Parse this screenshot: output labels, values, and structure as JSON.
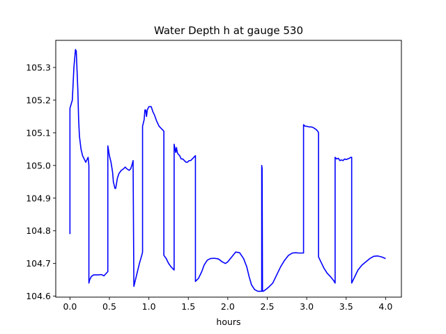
{
  "chart_data": {
    "type": "line",
    "title": "Water Depth h at gauge 530",
    "xlabel": "hours",
    "ylabel": "",
    "xlim": [
      -0.18,
      4.2
    ],
    "ylim": [
      104.597,
      105.383
    ],
    "xticks": [
      0.0,
      0.5,
      1.0,
      1.5,
      2.0,
      2.5,
      3.0,
      3.5,
      4.0
    ],
    "xtick_labels": [
      "0.0",
      "0.5",
      "1.0",
      "1.5",
      "2.0",
      "2.5",
      "3.0",
      "3.5",
      "4.0"
    ],
    "yticks": [
      104.6,
      104.7,
      104.8,
      104.9,
      105.0,
      105.1,
      105.2,
      105.3
    ],
    "ytick_labels": [
      "104.6",
      "104.7",
      "104.8",
      "104.9",
      "105.0",
      "105.1",
      "105.2",
      "105.3"
    ],
    "grid": false,
    "series": [
      {
        "color": "#0000ff",
        "x": [
          0.0,
          0.0,
          0.03,
          0.05,
          0.07,
          0.08,
          0.09,
          0.1,
          0.11,
          0.12,
          0.14,
          0.16,
          0.18,
          0.2,
          0.22,
          0.23,
          0.24,
          0.24,
          0.25,
          0.27,
          0.3,
          0.35,
          0.4,
          0.43,
          0.46,
          0.48,
          0.48,
          0.5,
          0.52,
          0.54,
          0.55,
          0.57,
          0.58,
          0.6,
          0.62,
          0.65,
          0.68,
          0.7,
          0.72,
          0.75,
          0.77,
          0.79,
          0.8,
          0.81,
          0.82,
          0.85,
          0.88,
          0.91,
          0.92,
          0.92,
          0.94,
          0.95,
          0.96,
          0.97,
          0.98,
          1.0,
          1.03,
          1.05,
          1.07,
          1.1,
          1.13,
          1.15,
          1.17,
          1.19,
          1.19,
          1.22,
          1.25,
          1.28,
          1.3,
          1.32,
          1.32,
          1.34,
          1.35,
          1.36,
          1.37,
          1.39,
          1.41,
          1.43,
          1.45,
          1.47,
          1.49,
          1.51,
          1.53,
          1.55,
          1.57,
          1.59,
          1.59,
          1.63,
          1.67,
          1.7,
          1.74,
          1.78,
          1.83,
          1.88,
          1.93,
          1.97,
          2.0,
          2.05,
          2.1,
          2.15,
          2.2,
          2.24,
          2.27,
          2.3,
          2.34,
          2.38,
          2.41,
          2.43,
          2.43,
          2.435,
          2.44,
          2.45,
          2.48,
          2.52,
          2.57,
          2.62,
          2.67,
          2.72,
          2.77,
          2.82,
          2.86,
          2.9,
          2.94,
          2.96,
          2.96,
          2.98,
          3.0,
          3.03,
          3.06,
          3.09,
          3.12,
          3.14,
          3.15,
          3.15,
          3.18,
          3.22,
          3.26,
          3.3,
          3.34,
          3.36,
          3.36,
          3.38,
          3.4,
          3.42,
          3.44,
          3.46,
          3.48,
          3.5,
          3.52,
          3.54,
          3.56,
          3.57,
          3.57,
          3.6,
          3.65,
          3.7,
          3.75,
          3.8,
          3.85,
          3.9,
          3.95,
          4.0
        ],
        "y": [
          104.79,
          105.175,
          105.2,
          105.3,
          105.355,
          105.35,
          105.29,
          105.23,
          105.14,
          105.09,
          105.05,
          105.03,
          105.02,
          105.01,
          105.02,
          105.025,
          105.0,
          104.64,
          104.65,
          104.66,
          104.665,
          104.665,
          104.666,
          104.662,
          104.67,
          104.675,
          105.06,
          105.03,
          105.01,
          104.98,
          104.95,
          104.93,
          104.93,
          104.96,
          104.975,
          104.985,
          104.99,
          104.995,
          104.99,
          104.985,
          104.99,
          105.005,
          105.015,
          104.63,
          104.64,
          104.67,
          104.7,
          104.725,
          104.735,
          105.12,
          105.14,
          105.17,
          105.17,
          105.15,
          105.17,
          105.18,
          105.18,
          105.165,
          105.155,
          105.135,
          105.12,
          105.115,
          105.11,
          105.105,
          104.725,
          104.715,
          104.7,
          104.69,
          104.685,
          104.68,
          105.065,
          105.04,
          105.055,
          105.04,
          105.035,
          105.03,
          105.02,
          105.02,
          105.015,
          105.01,
          105.01,
          105.015,
          105.015,
          105.02,
          105.025,
          105.03,
          104.645,
          104.655,
          104.675,
          104.695,
          104.71,
          104.715,
          104.716,
          104.714,
          104.705,
          104.7,
          104.705,
          104.72,
          104.735,
          104.733,
          104.715,
          104.69,
          104.66,
          104.635,
          104.62,
          104.615,
          104.615,
          104.615,
          105.0,
          104.99,
          104.615,
          104.615,
          104.62,
          104.628,
          104.64,
          104.665,
          104.69,
          104.71,
          104.725,
          104.732,
          104.733,
          104.732,
          104.732,
          104.732,
          105.125,
          105.12,
          105.12,
          105.118,
          105.118,
          105.115,
          105.11,
          105.105,
          105.1,
          104.72,
          104.705,
          104.685,
          104.67,
          104.66,
          104.648,
          104.64,
          105.025,
          105.02,
          105.022,
          105.015,
          105.017,
          105.015,
          105.02,
          105.018,
          105.02,
          105.022,
          105.025,
          105.025,
          104.64,
          104.655,
          104.68,
          104.695,
          104.705,
          104.715,
          104.722,
          104.723,
          104.72,
          104.715
        ]
      }
    ]
  }
}
